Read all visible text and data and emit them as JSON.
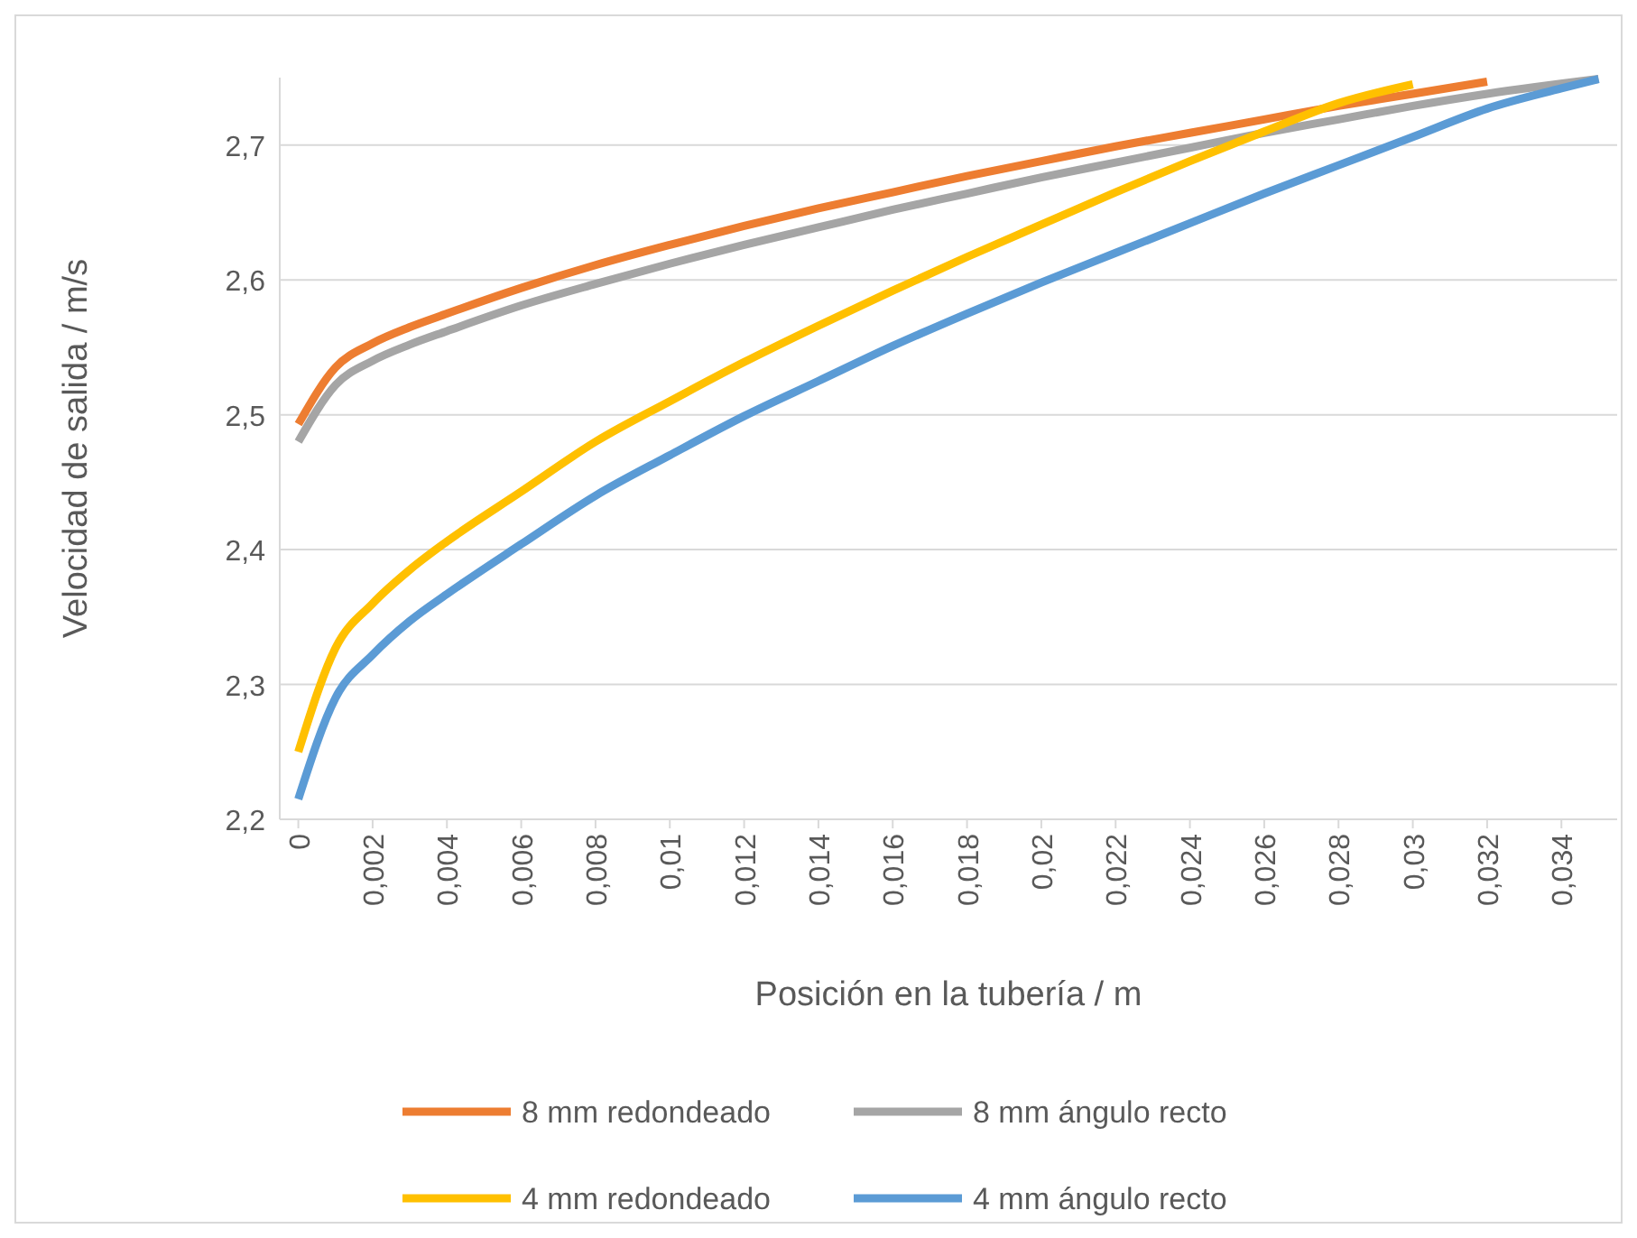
{
  "chart_data": {
    "type": "line",
    "xlabel": "Posición en la tubería / m",
    "ylabel": "Velocidad de salida / m/s",
    "xlim": [
      -0.0005,
      0.0355
    ],
    "xticks": [
      0,
      {
        "value": 0.002,
        "label": "0,002"
      },
      {
        "value": 0.004,
        "label": "0,004"
      },
      {
        "value": 0.006,
        "label": "0,006"
      },
      {
        "value": 0.008,
        "label": "0,008"
      },
      {
        "value": 0.01,
        "label": "0,01"
      },
      {
        "value": 0.012,
        "label": "0,012"
      },
      {
        "value": 0.014,
        "label": "0,014"
      },
      {
        "value": 0.016,
        "label": "0,016"
      },
      {
        "value": 0.018,
        "label": "0,018"
      },
      {
        "value": 0.02,
        "label": "0,02"
      },
      {
        "value": 0.022,
        "label": "0,022"
      },
      {
        "value": 0.024,
        "label": "0,024"
      },
      {
        "value": 0.026,
        "label": "0,026"
      },
      {
        "value": 0.028,
        "label": "0,028"
      },
      {
        "value": 0.03,
        "label": "0,03"
      },
      {
        "value": 0.032,
        "label": "0,032"
      },
      {
        "value": 0.034,
        "label": "0,034"
      }
    ],
    "ylim": [
      2.2,
      2.75
    ],
    "yticks": [
      {
        "value": 2.2,
        "label": "2,2"
      },
      {
        "value": 2.3,
        "label": "2,3"
      },
      {
        "value": 2.4,
        "label": "2,4"
      },
      {
        "value": 2.5,
        "label": "2,5"
      },
      {
        "value": 2.6,
        "label": "2,6"
      },
      {
        "value": 2.7,
        "label": "2,7"
      }
    ],
    "grid": "y",
    "legend": "bottom",
    "marker": "none",
    "line_style": "solid",
    "series": [
      {
        "name": "8 mm redondeado",
        "color": "#ed7d31",
        "x": [
          0,
          0.001,
          0.002,
          0.003,
          0.004,
          0.006,
          0.008,
          0.01,
          0.012,
          0.014,
          0.016,
          0.018,
          0.02,
          0.022,
          0.024,
          0.026,
          0.028,
          0.03,
          0.032
        ],
        "values": [
          2.493,
          2.535,
          2.553,
          2.565,
          2.575,
          2.594,
          2.611,
          2.626,
          2.64,
          2.653,
          2.665,
          2.677,
          2.688,
          2.699,
          2.709,
          2.719,
          2.729,
          2.738,
          2.747
        ]
      },
      {
        "name": "8 mm ángulo recto",
        "color": "#a5a5a5",
        "x": [
          0,
          0.001,
          0.002,
          0.003,
          0.004,
          0.006,
          0.008,
          0.01,
          0.012,
          0.014,
          0.016,
          0.018,
          0.02,
          0.022,
          0.024,
          0.026,
          0.028,
          0.03,
          0.032,
          0.035
        ],
        "values": [
          2.48,
          2.522,
          2.54,
          2.552,
          2.562,
          2.581,
          2.597,
          2.612,
          2.626,
          2.639,
          2.652,
          2.664,
          2.676,
          2.687,
          2.698,
          2.709,
          2.719,
          2.729,
          2.738,
          2.749
        ]
      },
      {
        "name": "4 mm redondeado",
        "color": "#ffc000",
        "x": [
          0,
          0.001,
          0.002,
          0.003,
          0.004,
          0.006,
          0.008,
          0.01,
          0.012,
          0.014,
          0.016,
          0.018,
          0.02,
          0.022,
          0.024,
          0.026,
          0.028,
          0.03
        ],
        "values": [
          2.25,
          2.327,
          2.36,
          2.385,
          2.406,
          2.443,
          2.48,
          2.51,
          2.539,
          2.566,
          2.592,
          2.617,
          2.641,
          2.665,
          2.688,
          2.71,
          2.731,
          2.745
        ]
      },
      {
        "name": "4 mm ángulo recto",
        "color": "#5b9bd5",
        "x": [
          0,
          0.001,
          0.002,
          0.003,
          0.004,
          0.006,
          0.008,
          0.01,
          0.012,
          0.014,
          0.016,
          0.018,
          0.02,
          0.022,
          0.024,
          0.026,
          0.028,
          0.03,
          0.032,
          0.034,
          0.035
        ],
        "values": [
          2.215,
          2.29,
          2.322,
          2.347,
          2.367,
          2.404,
          2.44,
          2.47,
          2.499,
          2.525,
          2.551,
          2.575,
          2.598,
          2.62,
          2.642,
          2.664,
          2.685,
          2.706,
          2.727,
          2.742,
          2.749
        ]
      }
    ]
  }
}
